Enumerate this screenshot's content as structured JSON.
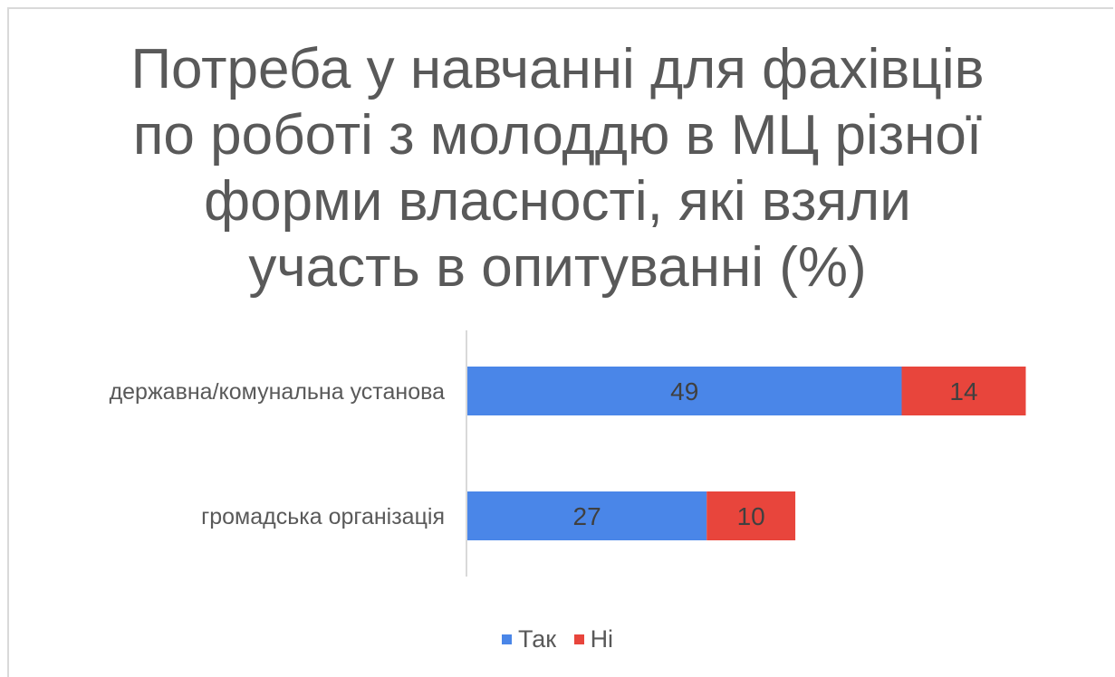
{
  "chart_data": {
    "type": "bar",
    "orientation": "horizontal",
    "stacked": true,
    "title_lines": [
      "Потреба у навчанні для фахівців",
      "по роботі з молоддю в МЦ різної",
      "форми власності, які взяли",
      "участь в опитуванні (%)"
    ],
    "categories": [
      "державна/комунальна установа",
      "громадська організація"
    ],
    "series": [
      {
        "name": "Так",
        "color": "#4a86e8",
        "values": [
          49,
          27
        ]
      },
      {
        "name": "Ні",
        "color": "#e8453c",
        "values": [
          14,
          10
        ]
      }
    ],
    "xlim": [
      0,
      70
    ],
    "grid": false,
    "data_labels": true,
    "legend_position": "bottom"
  }
}
